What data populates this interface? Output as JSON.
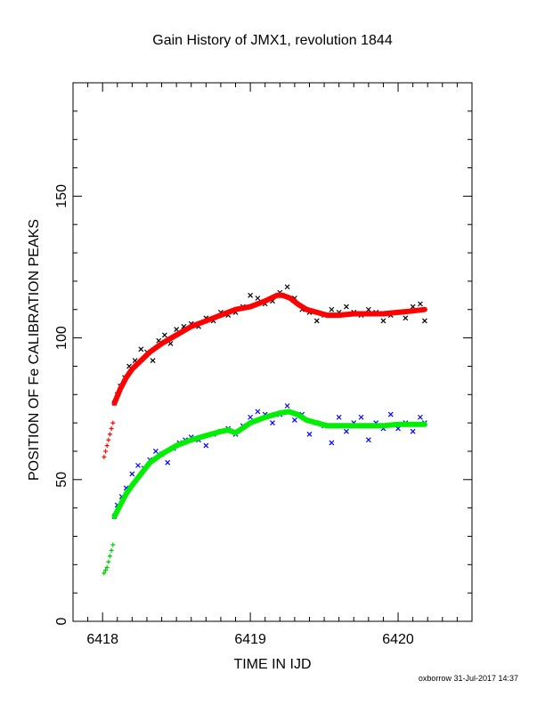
{
  "chart_data": {
    "type": "scatter",
    "title": "Gain History of JMX1, revolution 1844",
    "xlabel": "TIME IN IJD",
    "ylabel": "POSITION OF Fe CALIBRATION PEAKS",
    "xlim": [
      6417.8,
      6420.5
    ],
    "ylim": [
      0,
      190
    ],
    "xticks": [
      6418,
      6419,
      6420
    ],
    "yticks": [
      0,
      50,
      100,
      150
    ],
    "grid": false,
    "series": [
      {
        "marker": "x",
        "color": "#000000",
        "x": [
          6418.08,
          6418.1,
          6418.12,
          6418.15,
          6418.18,
          6418.22,
          6418.26,
          6418.3,
          6418.34,
          6418.38,
          6418.42,
          6418.46,
          6418.5,
          6418.55,
          6418.6,
          6418.65,
          6418.7,
          6418.75,
          6418.8,
          6418.85,
          6418.9,
          6418.95,
          6419.0,
          6419.05,
          6419.1,
          6419.15,
          6419.2,
          6419.25,
          6419.3,
          6419.35,
          6419.4,
          6419.45,
          6419.5,
          6419.55,
          6419.6,
          6419.65,
          6419.7,
          6419.75,
          6419.8,
          6419.85,
          6419.9,
          6419.95,
          6420.0,
          6420.05,
          6420.1,
          6420.15,
          6420.18
        ],
        "y": [
          77,
          80,
          83,
          86,
          90,
          92,
          96,
          95,
          92,
          99,
          101,
          98,
          103,
          104,
          105,
          104,
          107,
          106,
          109,
          108,
          109,
          111,
          115,
          114,
          112,
          113,
          116,
          118,
          114,
          110,
          109,
          106,
          108,
          110,
          109,
          111,
          109,
          108,
          110,
          109,
          106,
          108,
          109,
          107,
          111,
          112,
          106
        ]
      },
      {
        "marker": "line",
        "color": "#ff0000",
        "x": [
          6418.08,
          6418.12,
          6418.16,
          6418.2,
          6418.26,
          6418.32,
          6418.4,
          6418.5,
          6418.6,
          6418.7,
          6418.8,
          6418.9,
          6419.0,
          6419.1,
          6419.18,
          6419.22,
          6419.27,
          6419.32,
          6419.38,
          6419.45,
          6419.52,
          6419.6,
          6419.7,
          6419.8,
          6419.9,
          6420.0,
          6420.1,
          6420.18
        ],
        "y": [
          77,
          82,
          86,
          89,
          92,
          95,
          98,
          101,
          104,
          106,
          108,
          110,
          111,
          113,
          115,
          115,
          114,
          112,
          110,
          109,
          108,
          108,
          108.5,
          108.5,
          108.5,
          109,
          109.5,
          110
        ]
      },
      {
        "marker": "+",
        "color": "#ff0000",
        "x": [
          6418.01,
          6418.02,
          6418.03,
          6418.04,
          6418.05,
          6418.06,
          6418.07
        ],
        "y": [
          58,
          60,
          62,
          64,
          66,
          68,
          70
        ]
      },
      {
        "marker": "x",
        "color": "#0000ff",
        "x": [
          6418.08,
          6418.1,
          6418.13,
          6418.16,
          6418.2,
          6418.24,
          6418.28,
          6418.32,
          6418.36,
          6418.4,
          6418.44,
          6418.48,
          6418.52,
          6418.56,
          6418.6,
          6418.65,
          6418.7,
          6418.75,
          6418.8,
          6418.85,
          6418.9,
          6418.95,
          6419.0,
          6419.05,
          6419.1,
          6419.15,
          6419.2,
          6419.25,
          6419.3,
          6419.35,
          6419.4,
          6419.45,
          6419.5,
          6419.55,
          6419.6,
          6419.65,
          6419.7,
          6419.75,
          6419.8,
          6419.85,
          6419.9,
          6419.95,
          6420.0,
          6420.05,
          6420.1,
          6420.15,
          6420.18
        ],
        "y": [
          37,
          41,
          44,
          47,
          52,
          55,
          54,
          57,
          60,
          59,
          56,
          61,
          63,
          64,
          65,
          64,
          62,
          66,
          67,
          68,
          66,
          69,
          72,
          74,
          73,
          70,
          73,
          76,
          71,
          73,
          66,
          70,
          69,
          63,
          72,
          67,
          70,
          72,
          64,
          70,
          68,
          73,
          68,
          70,
          67,
          72,
          70
        ]
      },
      {
        "marker": "line",
        "color": "#00ee00",
        "x": [
          6418.08,
          6418.12,
          6418.16,
          6418.2,
          6418.26,
          6418.32,
          6418.4,
          6418.5,
          6418.6,
          6418.7,
          6418.8,
          6418.85,
          6418.9,
          6419.0,
          6419.1,
          6419.2,
          6419.26,
          6419.32,
          6419.38,
          6419.45,
          6419.52,
          6419.6,
          6419.7,
          6419.8,
          6419.9,
          6420.0,
          6420.1,
          6420.18
        ],
        "y": [
          37,
          41,
          45,
          48,
          52,
          56,
          59,
          62,
          64,
          65.5,
          67,
          67.5,
          66.5,
          70,
          72,
          73.5,
          74,
          73,
          71,
          70,
          69,
          69,
          69,
          69,
          69,
          69.5,
          69.5,
          69.5
        ]
      },
      {
        "marker": "+",
        "color": "#00cc00",
        "x": [
          6418.01,
          6418.02,
          6418.03,
          6418.04,
          6418.05,
          6418.06,
          6418.07
        ],
        "y": [
          17,
          18,
          19,
          21,
          23,
          25,
          27
        ]
      }
    ]
  },
  "footer": "oxborrow 31-Jul-2017 14:37"
}
